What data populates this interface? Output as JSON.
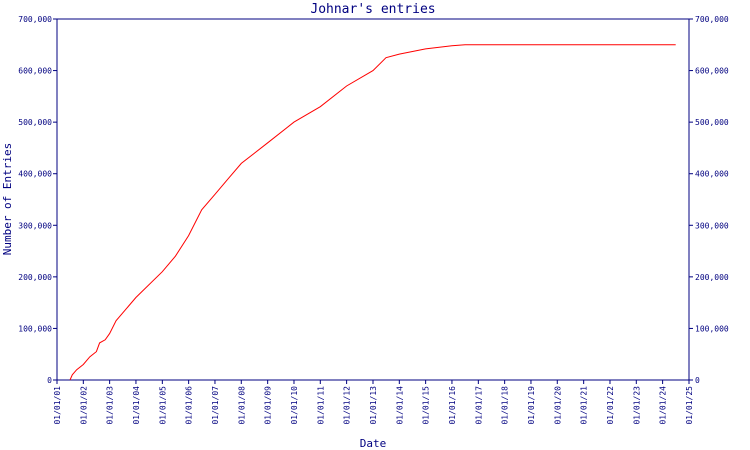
{
  "chart_data": {
    "type": "line",
    "title": "Johnar's entries",
    "xlabel": "Date",
    "ylabel": "Number of Entries",
    "ylim": [
      0,
      700000
    ],
    "xlim": [
      "2001-01-01",
      "2025-01-01"
    ],
    "grid": false,
    "legend": "none",
    "line_color": "#ff0000",
    "axis_color": "#000080",
    "x_tick_labels": [
      "01/01/01",
      "01/01/02",
      "01/01/03",
      "01/01/04",
      "01/01/05",
      "01/01/06",
      "01/01/07",
      "01/01/08",
      "01/01/09",
      "01/01/10",
      "01/01/11",
      "01/01/12",
      "01/01/13",
      "01/01/14",
      "01/01/15",
      "01/01/16",
      "01/01/17",
      "01/01/18",
      "01/01/19",
      "01/01/20",
      "01/01/21",
      "01/01/22",
      "01/01/23",
      "01/01/24",
      "01/01/25"
    ],
    "y_tick_labels": [
      "0",
      "100,000",
      "200,000",
      "300,000",
      "400,000",
      "500,000",
      "600,000",
      "700,000"
    ],
    "y_tick_values": [
      0,
      100000,
      200000,
      300000,
      400000,
      500000,
      600000,
      700000
    ],
    "series": [
      {
        "x": [
          "2001-07-01",
          "2001-08-01",
          "2001-10-01",
          "2002-01-01",
          "2002-04-01",
          "2002-07-01",
          "2002-08-15",
          "2002-11-01",
          "2003-01-01",
          "2003-04-01",
          "2004-01-01",
          "2005-01-01",
          "2005-07-01",
          "2006-01-01",
          "2006-07-01",
          "2007-01-01",
          "2007-07-01",
          "2008-01-01",
          "2009-01-01",
          "2010-01-01",
          "2011-01-01",
          "2012-01-01",
          "2013-01-01",
          "2013-07-01",
          "2014-01-01",
          "2015-01-01",
          "2016-01-01",
          "2016-07-01",
          "2024-07-01"
        ],
        "values": [
          0,
          10000,
          20000,
          30000,
          45000,
          55000,
          72000,
          78000,
          90000,
          115000,
          160000,
          210000,
          240000,
          280000,
          330000,
          360000,
          390000,
          420000,
          460000,
          500000,
          530000,
          570000,
          600000,
          625000,
          632000,
          642000,
          648000,
          650000,
          650000
        ]
      }
    ]
  }
}
